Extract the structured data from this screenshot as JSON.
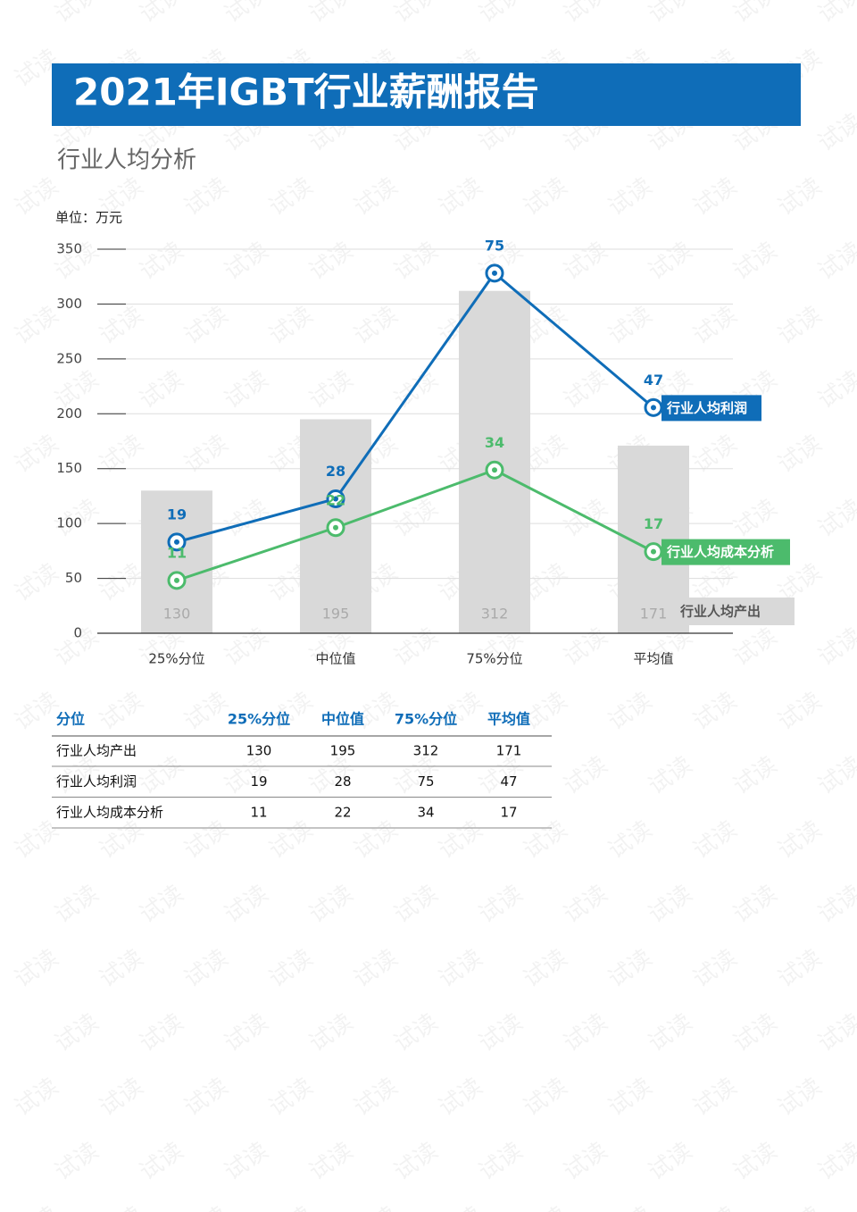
{
  "header": {
    "title": "2021年IGBT行业薪酬报告",
    "subtitle": "行业人均分析"
  },
  "watermark": "试读",
  "chart_data": {
    "type": "combo",
    "unit_label": "单位：万元",
    "categories": [
      "25%分位",
      "中位值",
      "75%分位",
      "平均值"
    ],
    "ylim": [
      0,
      350
    ],
    "yticks": [
      0,
      50,
      100,
      150,
      200,
      250,
      300,
      350
    ],
    "grid": true,
    "y2lim": [
      0,
      80
    ],
    "series": [
      {
        "name": "行业人均产出",
        "type": "bar",
        "color": "#d9d9d9",
        "values": [
          130,
          195,
          312,
          171
        ]
      },
      {
        "name": "行业人均利润",
        "type": "line",
        "axis": "y2",
        "color": "#0f6db8",
        "values": [
          19,
          28,
          75,
          47
        ]
      },
      {
        "name": "行业人均成本分析",
        "type": "line",
        "axis": "y2",
        "color": "#4cbb6c",
        "values": [
          11,
          22,
          34,
          17
        ]
      }
    ]
  },
  "table": {
    "corner": "分位"
  }
}
